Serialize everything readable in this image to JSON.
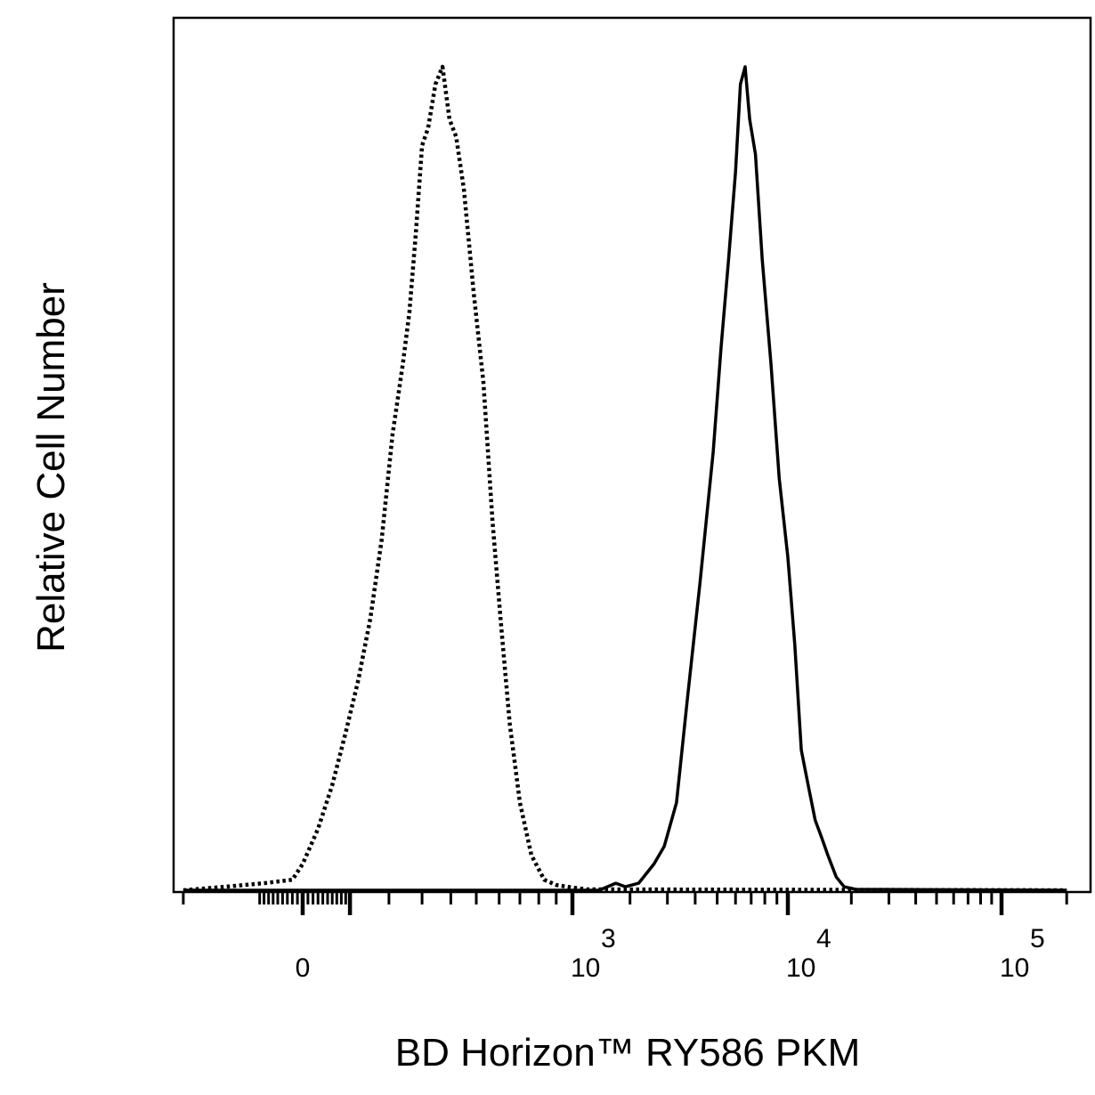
{
  "chart_data": {
    "type": "line",
    "title": "",
    "xlabel": "BD Horizon™ RY586 PKM",
    "ylabel": "Relative Cell Number",
    "x_scale": "biexponential",
    "x_tick_labels": [
      {
        "base": "0",
        "exp": "",
        "value": 0
      },
      {
        "base": "10",
        "exp": "3",
        "value": 1000
      },
      {
        "base": "10",
        "exp": "4",
        "value": 10000
      },
      {
        "base": "10",
        "exp": "5",
        "value": 100000
      }
    ],
    "xlim": [
      -300,
      200000
    ],
    "ylim": [
      0,
      100
    ],
    "y_ticks_shown": false,
    "grid": false,
    "legend": "none",
    "series": [
      {
        "style": "dotted",
        "color": "#000000",
        "points": [
          [
            -300,
            0
          ],
          [
            -150,
            0.5
          ],
          [
            -80,
            0.8
          ],
          [
            -20,
            1.2
          ],
          [
            0,
            3
          ],
          [
            30,
            7
          ],
          [
            60,
            12
          ],
          [
            90,
            18
          ],
          [
            120,
            24
          ],
          [
            150,
            31
          ],
          [
            180,
            40
          ],
          [
            210,
            52
          ],
          [
            240,
            60
          ],
          [
            260,
            66
          ],
          [
            280,
            75
          ],
          [
            300,
            85
          ],
          [
            320,
            87
          ],
          [
            345,
            92
          ],
          [
            370,
            94
          ],
          [
            395,
            88
          ],
          [
            420,
            86
          ],
          [
            450,
            80
          ],
          [
            490,
            68
          ],
          [
            530,
            58
          ],
          [
            570,
            42
          ],
          [
            610,
            30
          ],
          [
            650,
            19
          ],
          [
            700,
            10
          ],
          [
            760,
            4
          ],
          [
            830,
            1.2
          ],
          [
            900,
            0.6
          ],
          [
            1000,
            0.3
          ],
          [
            1200,
            0.1
          ],
          [
            200000,
            0
          ]
        ]
      },
      {
        "style": "solid",
        "color": "#000000",
        "points": [
          [
            -300,
            0
          ],
          [
            1400,
            0
          ],
          [
            1700,
            0.8
          ],
          [
            1900,
            0.4
          ],
          [
            2200,
            0.8
          ],
          [
            2600,
            3
          ],
          [
            2900,
            5
          ],
          [
            3300,
            10
          ],
          [
            3700,
            22
          ],
          [
            4200,
            35
          ],
          [
            4800,
            50
          ],
          [
            5200,
            62
          ],
          [
            5600,
            72
          ],
          [
            6000,
            82
          ],
          [
            6300,
            92
          ],
          [
            6600,
            94
          ],
          [
            6900,
            88
          ],
          [
            7300,
            84
          ],
          [
            7800,
            72
          ],
          [
            8500,
            60
          ],
          [
            9200,
            47
          ],
          [
            10000,
            38
          ],
          [
            10800,
            28
          ],
          [
            11600,
            16
          ],
          [
            12500,
            12
          ],
          [
            13500,
            8
          ],
          [
            14500,
            6
          ],
          [
            15500,
            4
          ],
          [
            17000,
            1.5
          ],
          [
            18500,
            0.4
          ],
          [
            21000,
            0.1
          ],
          [
            200000,
            0
          ]
        ]
      }
    ]
  }
}
